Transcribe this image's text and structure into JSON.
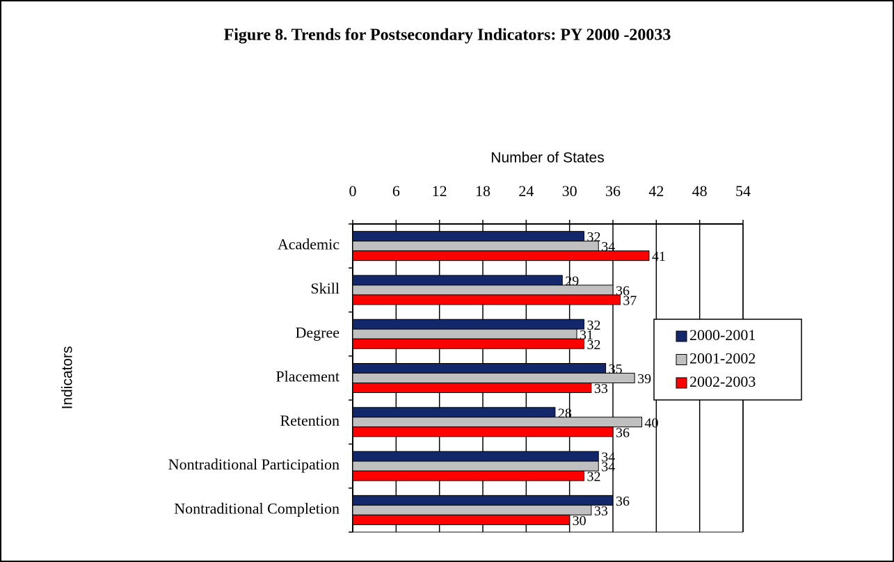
{
  "chart_data": {
    "type": "bar",
    "orientation": "horizontal",
    "title": "Figure 8.  Trends for Postsecondary Indicators:  PY 2000 -20033",
    "x_label": "Number of States",
    "y_label": "Indicators",
    "categories": [
      "Academic",
      "Skill",
      "Degree",
      "Placement",
      "Retention",
      "Nontraditional Participation",
      "Nontraditional Completion"
    ],
    "series": [
      {
        "name": "2000-2001",
        "color": "#13286b",
        "values": [
          32,
          29,
          32,
          35,
          28,
          34,
          36
        ]
      },
      {
        "name": "2001-2002",
        "color": "#c0c0c0",
        "values": [
          34,
          36,
          31,
          39,
          40,
          34,
          33
        ]
      },
      {
        "name": "2002-2003",
        "color": "#ff0000",
        "values": [
          41,
          37,
          32,
          33,
          36,
          32,
          30
        ]
      }
    ],
    "xlim": [
      0,
      54
    ],
    "xticks": [
      0,
      6,
      12,
      18,
      24,
      30,
      36,
      42,
      48,
      54
    ],
    "grid": true,
    "legend": "right"
  }
}
